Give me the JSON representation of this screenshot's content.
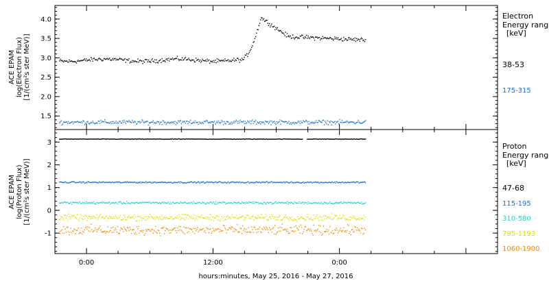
{
  "chart_data": [
    {
      "type": "scatter",
      "panel": "electron",
      "ylabel_lines": [
        "ACE EPAM",
        "log(Electron Flux)",
        "[1/(cm²s ster MeV)]"
      ],
      "ylim": [
        1.15,
        4.35
      ],
      "yticks": [
        1.5,
        2.0,
        2.5,
        3.0,
        3.5,
        4.0
      ],
      "ytick_labels": [
        "1.5",
        "2.0",
        "2.5",
        "3.0",
        "3.5",
        "4.0"
      ],
      "legend_title": [
        "Electron",
        "Energy ranges"
      ],
      "legend_unit": "[keV]",
      "series": [
        {
          "name": "38-53",
          "color": "#000000",
          "base": 2.95,
          "noise": 0.08
        },
        {
          "name": "175-315",
          "color": "#1a6fd0",
          "base": 1.35,
          "noise": 0.08
        }
      ]
    },
    {
      "type": "scatter",
      "panel": "proton",
      "ylabel_lines": [
        "ACE EPAM",
        "log(Proton Flux)",
        "[1/(cm²s ster MeV)]"
      ],
      "ylim": [
        -1.9,
        3.55
      ],
      "yticks": [
        -1,
        0,
        1,
        2,
        3
      ],
      "ytick_labels": [
        "-1",
        "0",
        "1",
        "2",
        "3"
      ],
      "legend_title": [
        "Proton",
        "Energy ranges"
      ],
      "legend_unit": "[keV]",
      "series": [
        {
          "name": "47-68",
          "color": "#000000",
          "base": 3.15,
          "noise": 0.02
        },
        {
          "name": "115-195",
          "color": "#1a6fd0",
          "base": 1.25,
          "noise": 0.05
        },
        {
          "name": "310-580",
          "color": "#22d0d0",
          "base": 0.35,
          "noise": 0.08
        },
        {
          "name": "795-1193",
          "color": "#d8e000",
          "base": -0.3,
          "noise": 0.2
        },
        {
          "name": "1060-1900",
          "color": "#ee8a00",
          "base": -0.85,
          "noise": 0.3
        }
      ]
    }
  ],
  "x_axis": {
    "xlabel": "hours:minutes, May 25, 2016 - May 27, 2016",
    "xlim_hours": [
      -3,
      39
    ],
    "data_end_hours": 26.5,
    "major_ticks": [
      0,
      12,
      24,
      36
    ],
    "major_labels": [
      "0:00",
      "12:00",
      "0:00",
      ""
    ],
    "minor_ticks": [
      -3,
      3,
      6,
      9,
      15,
      18,
      21,
      27,
      30,
      33
    ]
  },
  "electron_event": {
    "rise_start_hours": 14.5,
    "peak_hours": 16.5,
    "peak_value": 4.05,
    "post_event_value": 3.5
  }
}
